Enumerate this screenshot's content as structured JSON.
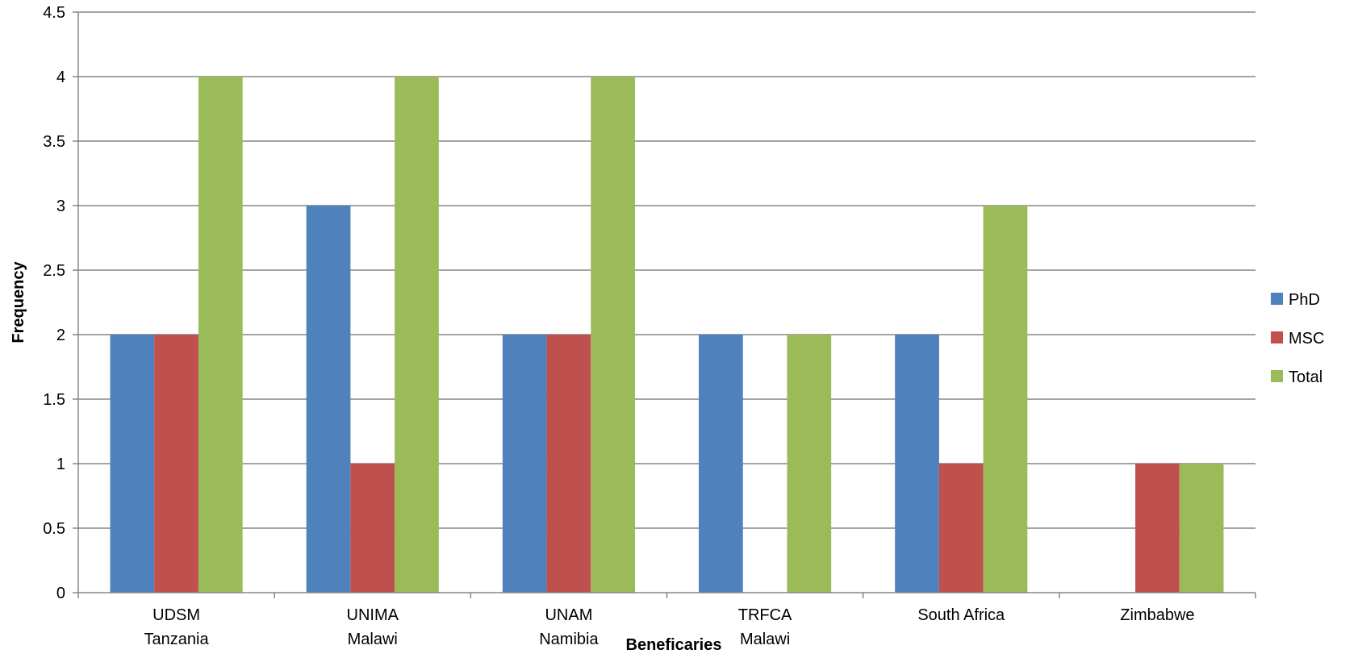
{
  "chart_data": {
    "type": "bar",
    "title": "",
    "xlabel": "Beneficaries",
    "ylabel": "Frequency",
    "categories": [
      [
        "UDSM",
        "Tanzania"
      ],
      [
        "UNIMA",
        "Malawi"
      ],
      [
        "UNAM",
        "Namibia"
      ],
      [
        "TRFCA",
        "Malawi"
      ],
      [
        "South Africa"
      ],
      [
        "Zimbabwe"
      ]
    ],
    "series": [
      {
        "name": "PhD",
        "color": "#4F81BD",
        "values": [
          2,
          3,
          2,
          2,
          2,
          0
        ]
      },
      {
        "name": "MSC",
        "color": "#C0504D",
        "values": [
          2,
          1,
          2,
          0,
          1,
          1
        ]
      },
      {
        "name": "Total",
        "color": "#9BBB59",
        "values": [
          4,
          4,
          4,
          2,
          3,
          1
        ]
      }
    ],
    "ylim": [
      0,
      4.5
    ],
    "yticks": [
      "0",
      "0.5",
      "1",
      "1.5",
      "2",
      "2.5",
      "3",
      "3.5",
      "4",
      "4.5"
    ],
    "grid": true,
    "legend_position": "right"
  }
}
